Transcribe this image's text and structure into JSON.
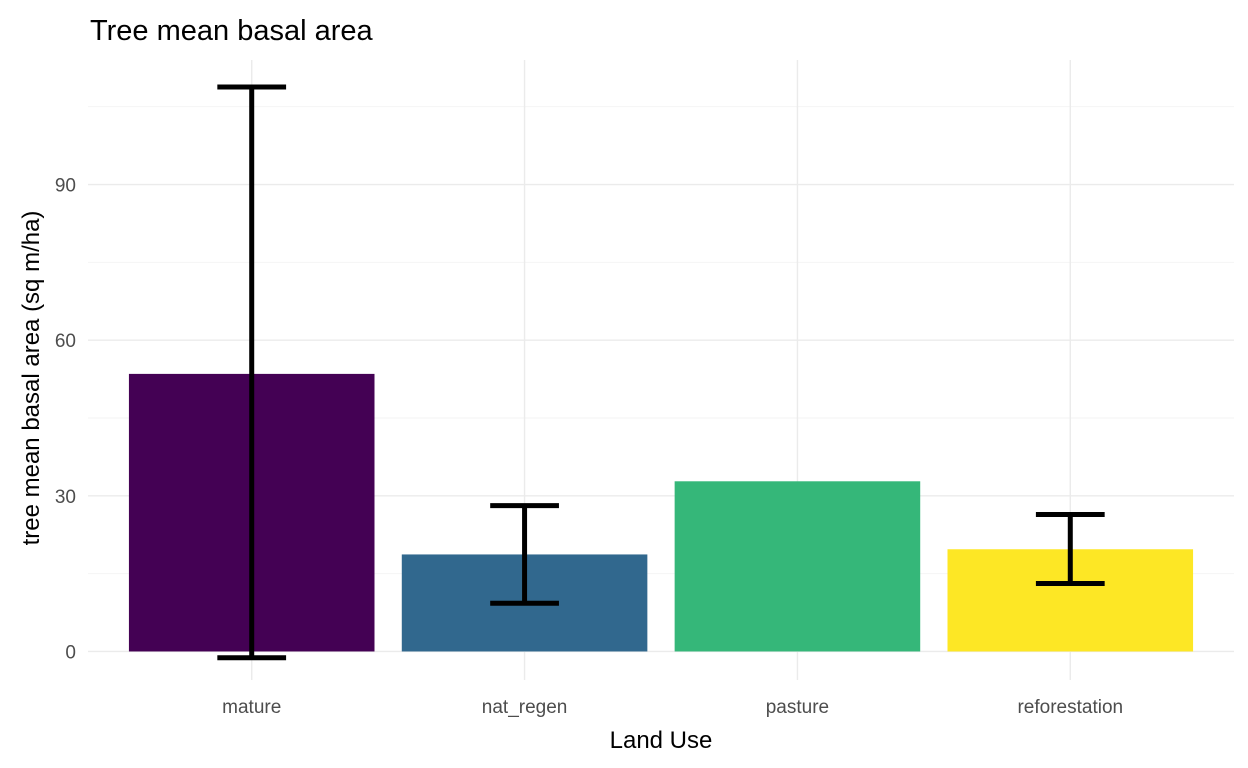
{
  "chart_data": {
    "type": "bar",
    "title": "Tree mean basal area",
    "xlabel": "Land Use",
    "ylabel": "tree mean basal area (sq m/ha)",
    "categories": [
      "mature",
      "nat_regen",
      "pasture",
      "reforestation"
    ],
    "values": [
      53.5,
      18.7,
      32.8,
      19.7
    ],
    "error_bars": [
      {
        "low": -1.2,
        "high": 108.8
      },
      {
        "low": 9.3,
        "high": 28.1
      },
      null,
      {
        "low": 13.1,
        "high": 26.4
      }
    ],
    "colors": [
      "#440154",
      "#31688e",
      "#35b779",
      "#fde725"
    ],
    "ylim": [
      -5.5,
      114
    ],
    "y_ticks": [
      0,
      30,
      60,
      90
    ],
    "y_minor_ticks": [
      15,
      45,
      75,
      105
    ],
    "grid": true,
    "legend": "none"
  }
}
